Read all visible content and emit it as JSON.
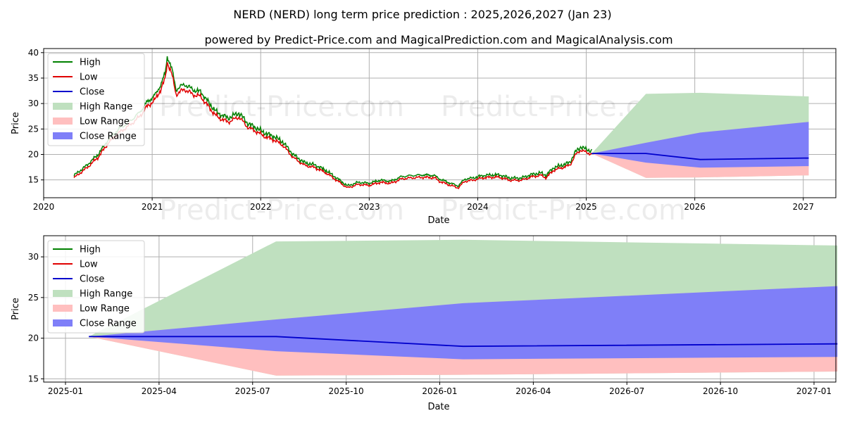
{
  "title": "NERD (NERD) long term price prediction : 2025,2026,2027 (Jan 23)",
  "subtitle": "powered by Predict-Price.com and MagicalPrediction.com and MagicalAnalysis.com",
  "watermark": "Predict-Price.com",
  "colors": {
    "high": "#008000",
    "low": "#e00000",
    "close": "#0000cc",
    "high_range": "#bfe0bf",
    "low_range": "#ffbfbf",
    "close_range": "#7f7ff8",
    "grid": "#b0b0b0"
  },
  "legend": [
    "High",
    "Low",
    "Close",
    "High Range",
    "Low Range",
    "Close Range"
  ],
  "chart_data": [
    {
      "type": "line",
      "name": "long-term",
      "xlabel": "Date",
      "ylabel": "Price",
      "xlim": [
        2020.0,
        2027.3
      ],
      "ylim": [
        11.5,
        40.8
      ],
      "x_ticks": [
        2020,
        2021,
        2022,
        2023,
        2024,
        2025,
        2026,
        2027
      ],
      "x_tick_labels": [
        "2020",
        "2021",
        "2022",
        "2023",
        "2024",
        "2025",
        "2026",
        "2027"
      ],
      "y_ticks": [
        15,
        20,
        25,
        30,
        35,
        40
      ],
      "y_tick_labels": [
        "15",
        "20",
        "25",
        "30",
        "35",
        "40"
      ],
      "history_anchors": [
        [
          2020.28,
          15.5
        ],
        [
          2020.4,
          17.5
        ],
        [
          2020.5,
          19.5
        ],
        [
          2020.6,
          22.5
        ],
        [
          2020.7,
          24.5
        ],
        [
          2020.8,
          26.0
        ],
        [
          2020.88,
          27.5
        ],
        [
          2020.95,
          29.5
        ],
        [
          2021.03,
          31.0
        ],
        [
          2021.08,
          33.0
        ],
        [
          2021.12,
          35.0
        ],
        [
          2021.14,
          38.5
        ],
        [
          2021.18,
          36.0
        ],
        [
          2021.22,
          32.0
        ],
        [
          2021.3,
          33.0
        ],
        [
          2021.37,
          32.0
        ],
        [
          2021.45,
          31.5
        ],
        [
          2021.52,
          29.5
        ],
        [
          2021.6,
          27.5
        ],
        [
          2021.7,
          26.5
        ],
        [
          2021.8,
          27.5
        ],
        [
          2021.88,
          25.5
        ],
        [
          2021.97,
          24.5
        ],
        [
          2022.05,
          23.5
        ],
        [
          2022.12,
          23.0
        ],
        [
          2022.2,
          22.0
        ],
        [
          2022.3,
          19.5
        ],
        [
          2022.4,
          18.0
        ],
        [
          2022.5,
          17.5
        ],
        [
          2022.6,
          16.5
        ],
        [
          2022.7,
          15.0
        ],
        [
          2022.8,
          13.5
        ],
        [
          2022.9,
          14.2
        ],
        [
          2023.0,
          14.0
        ],
        [
          2023.1,
          14.6
        ],
        [
          2023.2,
          14.4
        ],
        [
          2023.3,
          15.3
        ],
        [
          2023.4,
          15.5
        ],
        [
          2023.5,
          15.6
        ],
        [
          2023.6,
          15.5
        ],
        [
          2023.65,
          14.8
        ],
        [
          2023.75,
          14.0
        ],
        [
          2023.82,
          13.5
        ],
        [
          2023.88,
          14.8
        ],
        [
          2023.95,
          15.0
        ],
        [
          2024.05,
          15.5
        ],
        [
          2024.12,
          15.6
        ],
        [
          2024.2,
          15.6
        ],
        [
          2024.3,
          15.0
        ],
        [
          2024.4,
          15.0
        ],
        [
          2024.5,
          15.7
        ],
        [
          2024.58,
          16.0
        ],
        [
          2024.63,
          15.5
        ],
        [
          2024.7,
          17.0
        ],
        [
          2024.78,
          17.5
        ],
        [
          2024.85,
          18.0
        ],
        [
          2024.9,
          20.0
        ],
        [
          2024.95,
          21.0
        ],
        [
          2025.0,
          20.5
        ],
        [
          2025.05,
          20.2
        ]
      ],
      "forecast": {
        "x": [
          2025.05,
          2025.55,
          2026.05,
          2027.05
        ],
        "high_range_upper": [
          20.2,
          31.9,
          32.1,
          31.4
        ],
        "low_range_lower": [
          20.2,
          15.4,
          15.5,
          15.9
        ],
        "close_range_upper": [
          20.2,
          22.3,
          24.3,
          26.4
        ],
        "close_range_lower": [
          20.2,
          18.4,
          17.4,
          17.7
        ],
        "close": [
          20.2,
          20.2,
          19.0,
          19.3
        ]
      }
    },
    {
      "type": "line",
      "name": "forecast-zoom",
      "xlabel": "Date",
      "ylabel": "Price",
      "xlim": [
        -0.7,
        24.7
      ],
      "ylim": [
        14.6,
        32.6
      ],
      "x_ticks": [
        0,
        3,
        6,
        9,
        12,
        15,
        18,
        21,
        24
      ],
      "x_tick_labels": [
        "2025-01",
        "2025-04",
        "2025-07",
        "2025-10",
        "2026-01",
        "2026-04",
        "2026-07",
        "2026-10",
        "2027-01"
      ],
      "y_ticks": [
        15,
        20,
        25,
        30
      ],
      "y_tick_labels": [
        "15",
        "20",
        "25",
        "30"
      ],
      "forecast": {
        "x": [
          0.75,
          6.75,
          12.75,
          24.75
        ],
        "high_range_upper": [
          20.2,
          31.9,
          32.1,
          31.4
        ],
        "low_range_lower": [
          20.2,
          15.4,
          15.5,
          15.9
        ],
        "close_range_upper": [
          20.2,
          22.3,
          24.3,
          26.4
        ],
        "close_range_lower": [
          20.2,
          18.4,
          17.4,
          17.7
        ],
        "close": [
          20.2,
          20.2,
          19.0,
          19.3
        ]
      }
    }
  ]
}
